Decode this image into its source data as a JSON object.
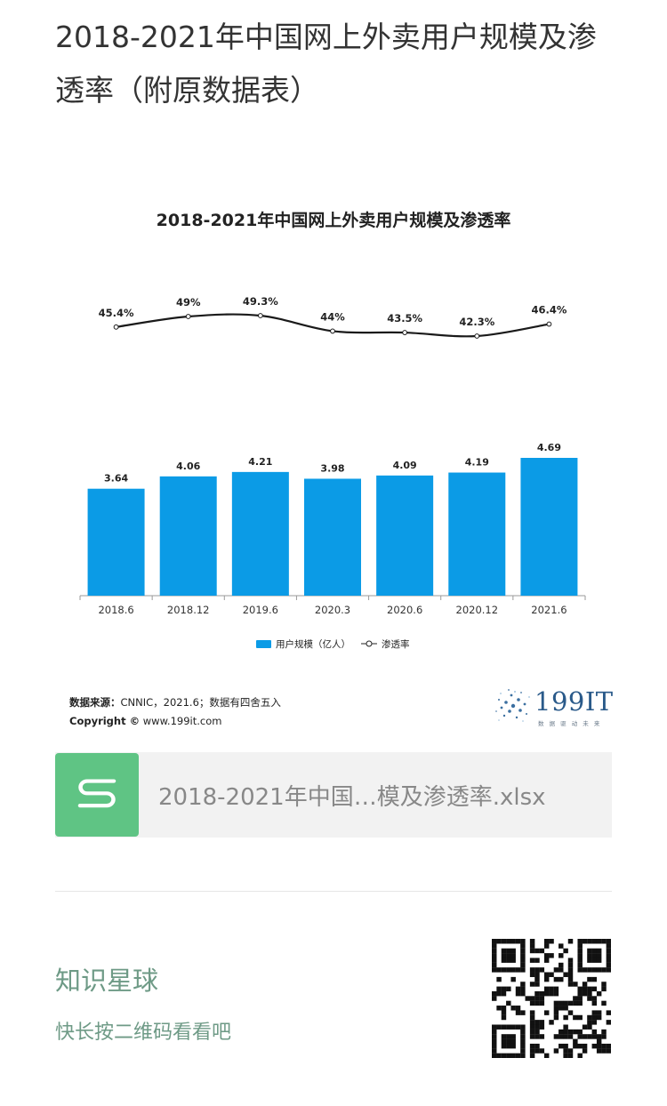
{
  "post": {
    "title": "2018-2021年中国网上外卖用户规模及渗透率（附原数据表）"
  },
  "chart_data": {
    "type": "bar",
    "title": "2018-2021年中国网上外卖用户规模及渗透率",
    "categories": [
      "2018.6",
      "2018.12",
      "2019.6",
      "2020.3",
      "2020.6",
      "2020.12",
      "2021.6"
    ],
    "series": [
      {
        "name": "用户规模（亿人）",
        "type": "bar",
        "values": [
          3.64,
          4.06,
          4.21,
          3.98,
          4.09,
          4.19,
          4.69
        ],
        "labels": [
          "3.64",
          "4.06",
          "4.21",
          "3.98",
          "4.09",
          "4.19",
          "4.69"
        ]
      },
      {
        "name": "渗透率",
        "type": "line",
        "values": [
          45.4,
          49.0,
          49.3,
          44.0,
          43.5,
          42.3,
          46.4
        ],
        "labels": [
          "45.4%",
          "49%",
          "49.3%",
          "44%",
          "43.5%",
          "42.3%",
          "46.4%"
        ]
      }
    ],
    "legend": {
      "placement": "bottom"
    },
    "grid": false,
    "bar_color": "#0b9be6",
    "line_color": "#1a1a1a"
  },
  "source": {
    "label": "数据来源：",
    "text": "CNNIC，2021.6；数据有四舍五入",
    "copyright_label": "Copyright ©",
    "copyright_url": "www.199it.com"
  },
  "logo": {
    "brand": "199IT",
    "tagline": "数 据 驱 动 未 来"
  },
  "attachment": {
    "file_name": "2018-2021年中国…模及渗透率.xlsx",
    "icon": "spreadsheet-icon",
    "icon_color": "#5fc484"
  },
  "promo": {
    "title": "知识星球",
    "subtitle": "快长按二维码看看吧",
    "accent": "#6e9a86"
  }
}
